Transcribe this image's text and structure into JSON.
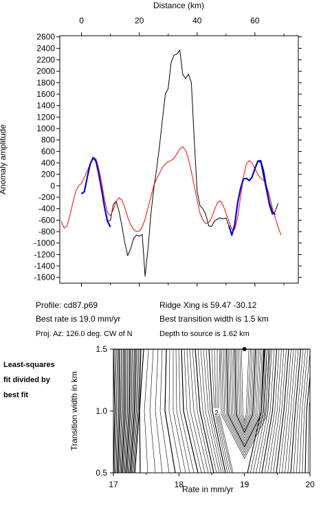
{
  "chart_data": [
    {
      "type": "line",
      "x_top_label": "Distance (km)",
      "ylabel": "Anomaly amplitude",
      "x_ticks": [
        0,
        20,
        40,
        60
      ],
      "xlim": [
        -7.5,
        75
      ],
      "y_ticks": [
        2600,
        2400,
        2200,
        2000,
        1800,
        1600,
        1400,
        1200,
        1000,
        800,
        600,
        400,
        200,
        0,
        -200,
        -400,
        -600,
        -800,
        -1000,
        -1200,
        -1400,
        -1600
      ],
      "ylim": [
        -1700,
        2620
      ],
      "series": [
        {
          "color": "#000000",
          "points": [
            [
              0,
              -140
            ],
            [
              1,
              -100
            ],
            [
              2,
              150
            ],
            [
              3,
              380
            ],
            [
              4,
              490
            ],
            [
              5,
              430
            ],
            [
              6,
              200
            ],
            [
              7,
              -80
            ],
            [
              8,
              -380
            ],
            [
              9,
              -620
            ],
            [
              10,
              -600
            ],
            [
              11,
              -330
            ],
            [
              12,
              -270
            ],
            [
              13,
              -450
            ],
            [
              14,
              -700
            ],
            [
              15,
              -1000
            ],
            [
              16,
              -1220
            ],
            [
              17,
              -1100
            ],
            [
              18,
              -920
            ],
            [
              19,
              -860
            ],
            [
              20,
              -880
            ],
            [
              21,
              -850
            ],
            [
              22,
              -1580
            ],
            [
              23,
              -1100
            ],
            [
              24,
              -500
            ],
            [
              25,
              -50
            ],
            [
              26,
              300
            ],
            [
              27,
              700
            ],
            [
              28,
              1150
            ],
            [
              29,
              1600
            ],
            [
              30,
              1700
            ],
            [
              31,
              2150
            ],
            [
              32,
              2280
            ],
            [
              33,
              2300
            ],
            [
              34,
              2370
            ],
            [
              35,
              1950
            ],
            [
              36,
              1870
            ],
            [
              37,
              1950
            ],
            [
              38,
              1800
            ],
            [
              39,
              800
            ],
            [
              40,
              -100
            ],
            [
              41,
              -350
            ],
            [
              42,
              -400
            ],
            [
              43,
              -500
            ],
            [
              44,
              -700
            ],
            [
              45,
              -710
            ],
            [
              46,
              -620
            ],
            [
              47,
              -580
            ],
            [
              48,
              -560
            ],
            [
              49,
              -580
            ],
            [
              50,
              -560
            ],
            [
              51,
              -700
            ],
            [
              52,
              -860
            ],
            [
              53,
              -680
            ],
            [
              54,
              -300
            ],
            [
              55,
              -50
            ],
            [
              56,
              120
            ],
            [
              57,
              130
            ],
            [
              58,
              90
            ],
            [
              59,
              150
            ],
            [
              60,
              300
            ],
            [
              61,
              430
            ],
            [
              62,
              400
            ],
            [
              63,
              150
            ],
            [
              64,
              -100
            ],
            [
              65,
              -350
            ],
            [
              66,
              -500
            ],
            [
              67,
              -450
            ],
            [
              68,
              -300
            ]
          ]
        },
        {
          "color": "#ff0000",
          "points": [
            [
              -7,
              -620
            ],
            [
              -6,
              -740
            ],
            [
              -5,
              -700
            ],
            [
              -4,
              -520
            ],
            [
              -3,
              -300
            ],
            [
              -2,
              -100
            ],
            [
              -1,
              0
            ],
            [
              0,
              40
            ],
            [
              1,
              150
            ],
            [
              2,
              260
            ],
            [
              3,
              380
            ],
            [
              4,
              500
            ],
            [
              5,
              470
            ],
            [
              6,
              300
            ],
            [
              7,
              50
            ],
            [
              8,
              -250
            ],
            [
              9,
              -470
            ],
            [
              10,
              -520
            ],
            [
              11,
              -420
            ],
            [
              12,
              -270
            ],
            [
              13,
              -210
            ],
            [
              14,
              -250
            ],
            [
              15,
              -380
            ],
            [
              16,
              -550
            ],
            [
              17,
              -680
            ],
            [
              18,
              -760
            ],
            [
              19,
              -800
            ],
            [
              20,
              -790
            ],
            [
              21,
              -720
            ],
            [
              22,
              -580
            ],
            [
              23,
              -390
            ],
            [
              24,
              -190
            ],
            [
              25,
              0
            ],
            [
              26,
              120
            ],
            [
              27,
              220
            ],
            [
              28,
              320
            ],
            [
              29,
              380
            ],
            [
              30,
              420
            ],
            [
              31,
              440
            ],
            [
              32,
              480
            ],
            [
              33,
              560
            ],
            [
              34,
              640
            ],
            [
              35,
              680
            ],
            [
              36,
              620
            ],
            [
              37,
              470
            ],
            [
              38,
              250
            ],
            [
              39,
              0
            ],
            [
              40,
              -250
            ],
            [
              41,
              -480
            ],
            [
              42,
              -600
            ],
            [
              43,
              -660
            ],
            [
              44,
              -640
            ],
            [
              45,
              -560
            ],
            [
              46,
              -420
            ],
            [
              47,
              -300
            ],
            [
              48,
              -260
            ],
            [
              49,
              -340
            ],
            [
              50,
              -480
            ],
            [
              51,
              -620
            ],
            [
              52,
              -760
            ],
            [
              53,
              -760
            ],
            [
              54,
              -560
            ],
            [
              55,
              -200
            ],
            [
              56,
              150
            ],
            [
              57,
              380
            ],
            [
              58,
              440
            ],
            [
              59,
              400
            ],
            [
              60,
              300
            ],
            [
              61,
              200
            ],
            [
              62,
              130
            ],
            [
              63,
              100
            ],
            [
              64,
              0
            ],
            [
              65,
              -170
            ],
            [
              66,
              -380
            ],
            [
              67,
              -560
            ],
            [
              68,
              -720
            ],
            [
              69,
              -860
            ]
          ]
        },
        {
          "color": "#0000dd",
          "points": [
            [
              0,
              -140
            ],
            [
              1,
              -100
            ],
            [
              2,
              150
            ],
            [
              3,
              380
            ],
            [
              4,
              490
            ],
            [
              5,
              430
            ],
            [
              6,
              200
            ],
            [
              7,
              -80
            ],
            [
              8,
              -380
            ],
            [
              9,
              -620
            ],
            [
              10,
              -720
            ]
          ]
        },
        {
          "color": "#0000dd",
          "points": [
            [
              51,
              -700
            ],
            [
              52,
              -860
            ],
            [
              53,
              -680
            ],
            [
              54,
              -300
            ],
            [
              55,
              -50
            ],
            [
              56,
              120
            ],
            [
              57,
              130
            ],
            [
              58,
              90
            ],
            [
              59,
              150
            ],
            [
              60,
              300
            ],
            [
              61,
              430
            ],
            [
              62,
              440
            ],
            [
              63,
              250
            ],
            [
              64,
              -50
            ],
            [
              65,
              -300
            ],
            [
              66,
              -460
            ],
            [
              67,
              -500
            ]
          ]
        }
      ]
    },
    {
      "type": "contour",
      "xlabel": "Rate in mm/yr",
      "ylabel": "Transition width in km",
      "x_ticks": [
        17,
        18,
        19,
        20
      ],
      "xlim": [
        17,
        20
      ],
      "y_ticks": [
        0.5,
        1.0,
        1.5
      ],
      "ylim": [
        0.5,
        1.5
      ],
      "contour_label": "2",
      "best_fit_point": [
        19.0,
        1.5
      ]
    }
  ],
  "info": {
    "profile": "Profile: cd87.p69",
    "best_rate": "Best rate is 19.0 mm/yr",
    "proj_az": "Proj. Az: 126.0 deg. CW of N",
    "ridge_xing": "Ridge Xing is 59.47 -30.12",
    "best_transition": "Best transition width is 1.5 km",
    "depth": "Depth to source is   1.62 km"
  },
  "side_note": [
    "Least-squares",
    "fit divided by",
    "best fit"
  ]
}
